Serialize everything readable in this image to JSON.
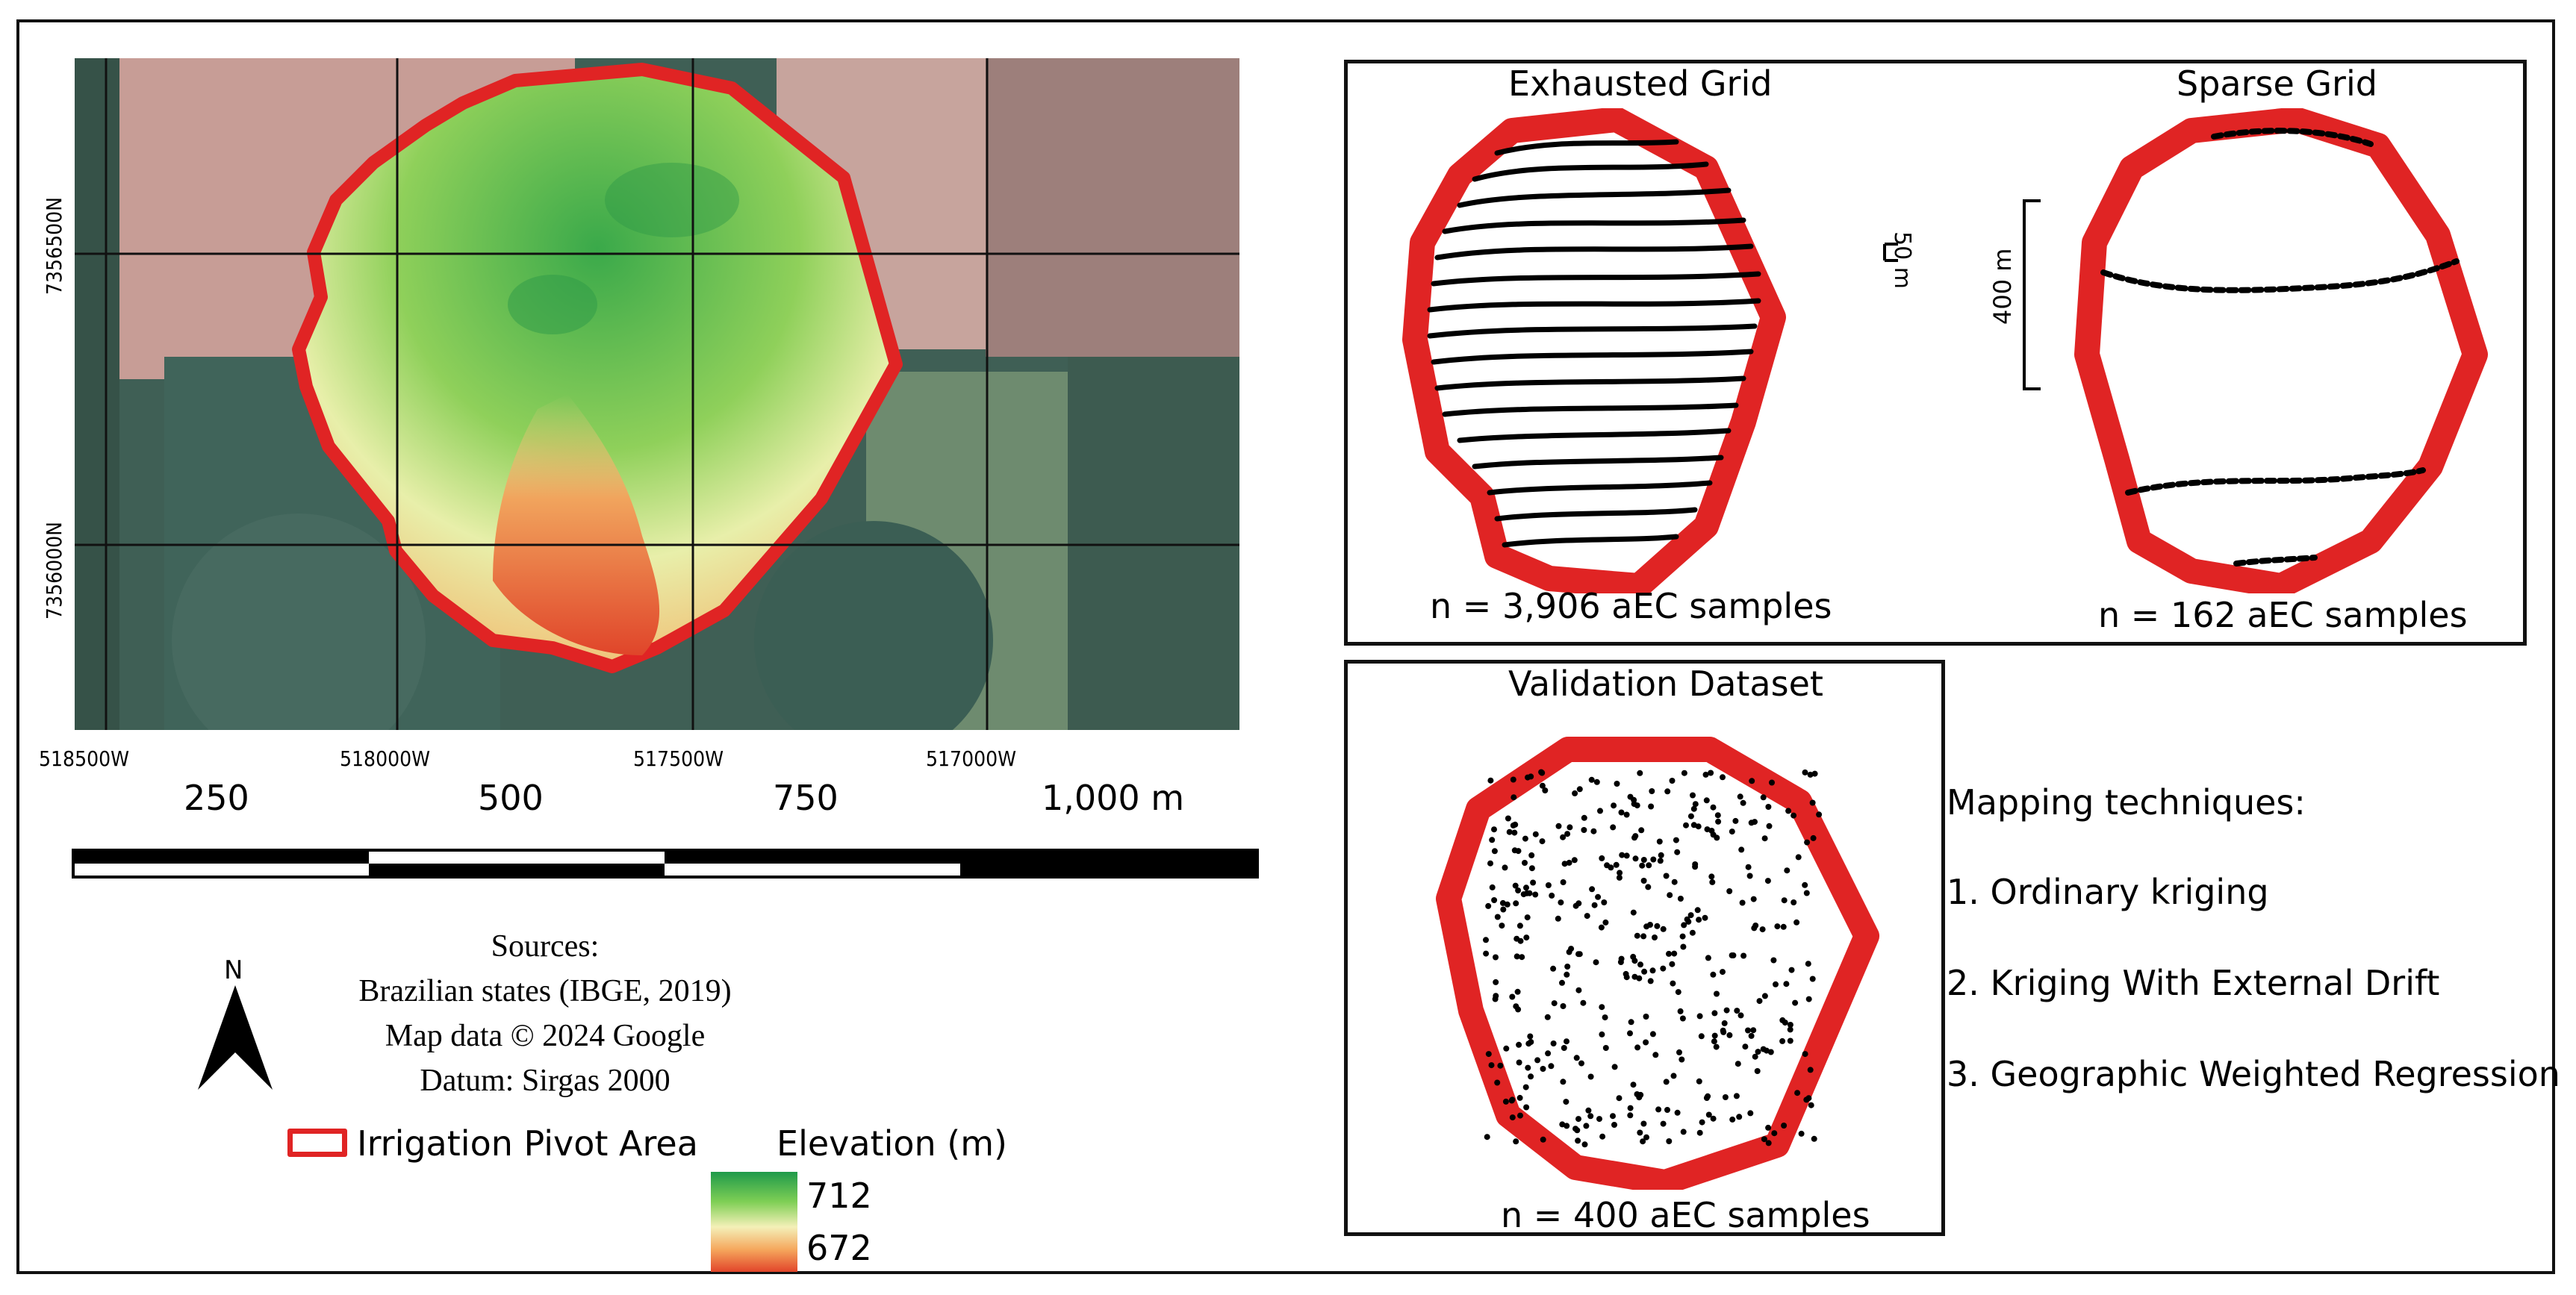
{
  "map": {
    "lat_labels": [
      "7356500N",
      "7356000N"
    ],
    "lon_labels": [
      "518500W",
      "518000W",
      "517500W",
      "517000W"
    ],
    "scale_labels": [
      "250",
      "500",
      "750",
      "1,000 m"
    ],
    "sources_lines": [
      "Sources:",
      "Brazilian states (IBGE, 2019)",
      "Map data © 2024 Google",
      "Datum: Sirgas 2000"
    ],
    "north_label": "N",
    "legend": {
      "pivot_label": "Irrigation Pivot Area",
      "elevation_title": "Elevation (m)",
      "elevation_max": "712",
      "elevation_min": "672"
    },
    "colors": {
      "pivot_outline": "#e02424",
      "elev_high": "#1f9a4a",
      "elev_low": "#e2452a"
    }
  },
  "panels": {
    "exhausted": {
      "title": "Exhausted Grid",
      "count": "n = 3,906 aEC samples",
      "scale_label": "50 m"
    },
    "sparse": {
      "title": "Sparse Grid",
      "count": "n = 162 aEC samples",
      "scale_label": "400 m"
    },
    "validation": {
      "title": "Validation Dataset",
      "count": "n = 400 aEC samples"
    }
  },
  "techniques": {
    "title": "Mapping techniques:",
    "items": [
      "1. Ordinary kriging",
      "2. Kriging With External Drift",
      "3. Geographic Weighted Regression"
    ]
  }
}
